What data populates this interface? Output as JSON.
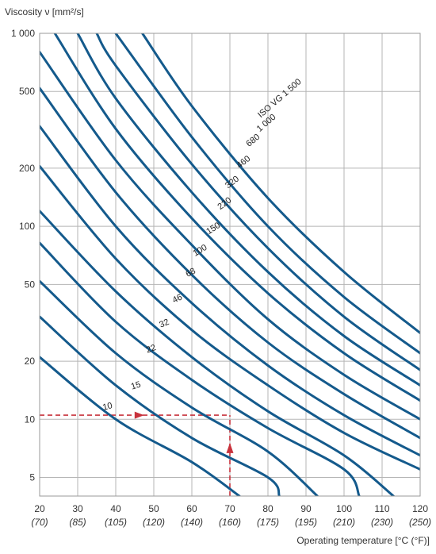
{
  "chart_data": {
    "type": "line",
    "y_scale": "log",
    "ylabel": "Viscosity ν [mm²/s]",
    "xlabel": "Operating temperature [°C (°F)]",
    "xlim": [
      20,
      120
    ],
    "ylim": [
      4,
      1000
    ],
    "grid": true,
    "x_ticks": [
      20,
      30,
      40,
      50,
      60,
      70,
      80,
      90,
      100,
      110,
      120
    ],
    "x_ticks_f": [
      "(70)",
      "(85)",
      "(105)",
      "(120)",
      "(140)",
      "(160)",
      "(175)",
      "(195)",
      "(210)",
      "(230)",
      "(250)"
    ],
    "y_ticks": [
      5,
      10,
      20,
      50,
      100,
      200,
      500,
      1000
    ],
    "y_tick_labels": [
      "5",
      "10",
      "20",
      "50",
      "100",
      "200",
      "500",
      "1 000"
    ],
    "line_color": "#145a8c",
    "guide_color": "#c8323c",
    "series": [
      {
        "name": "10",
        "points": [
          [
            20,
            21
          ],
          [
            40,
            10
          ],
          [
            60,
            6
          ],
          [
            72.5,
            4
          ]
        ]
      },
      {
        "name": "15",
        "points": [
          [
            20,
            34
          ],
          [
            40,
            15
          ],
          [
            60,
            8
          ],
          [
            80,
            5
          ],
          [
            83,
            4
          ]
        ]
      },
      {
        "name": "22",
        "points": [
          [
            20,
            52
          ],
          [
            40,
            22
          ],
          [
            60,
            11.5
          ],
          [
            80,
            6.8
          ],
          [
            93,
            4
          ]
        ]
      },
      {
        "name": "32",
        "points": [
          [
            20,
            82
          ],
          [
            40,
            32
          ],
          [
            60,
            16
          ],
          [
            80,
            9
          ],
          [
            100,
            5.5
          ],
          [
            104,
            4
          ]
        ]
      },
      {
        "name": "46",
        "points": [
          [
            20,
            120
          ],
          [
            40,
            46
          ],
          [
            60,
            21
          ],
          [
            80,
            11
          ],
          [
            100,
            6.5
          ],
          [
            113,
            4
          ]
        ]
      },
      {
        "name": "68",
        "points": [
          [
            20,
            205
          ],
          [
            40,
            68
          ],
          [
            60,
            29
          ],
          [
            80,
            15
          ],
          [
            100,
            8.5
          ],
          [
            120,
            5.5
          ]
        ]
      },
      {
        "name": "100",
        "points": [
          [
            20,
            330
          ],
          [
            40,
            100
          ],
          [
            60,
            40
          ],
          [
            80,
            19
          ],
          [
            100,
            10.5
          ],
          [
            120,
            6.5
          ]
        ]
      },
      {
        "name": "150",
        "points": [
          [
            20,
            520
          ],
          [
            40,
            150
          ],
          [
            60,
            56
          ],
          [
            80,
            25
          ],
          [
            100,
            13.5
          ],
          [
            120,
            8
          ]
        ]
      },
      {
        "name": "220",
        "points": [
          [
            20,
            800
          ],
          [
            40,
            220
          ],
          [
            60,
            80
          ],
          [
            80,
            33
          ],
          [
            100,
            17
          ],
          [
            120,
            10
          ]
        ]
      },
      {
        "name": "320",
        "points": [
          [
            24,
            1000
          ],
          [
            40,
            320
          ],
          [
            60,
            110
          ],
          [
            80,
            45
          ],
          [
            100,
            22
          ],
          [
            120,
            12.5
          ]
        ]
      },
      {
        "name": "460",
        "points": [
          [
            30,
            1000
          ],
          [
            40,
            460
          ],
          [
            60,
            150
          ],
          [
            80,
            58
          ],
          [
            100,
            27
          ],
          [
            120,
            15
          ]
        ]
      },
      {
        "name": "680",
        "points": [
          [
            35,
            1000
          ],
          [
            40,
            680
          ],
          [
            60,
            210
          ],
          [
            80,
            77
          ],
          [
            100,
            34
          ],
          [
            120,
            18
          ]
        ]
      },
      {
        "name": "1 000",
        "points": [
          [
            40,
            1000
          ],
          [
            60,
            290
          ],
          [
            80,
            100
          ],
          [
            100,
            43
          ],
          [
            120,
            22
          ]
        ]
      },
      {
        "name": "ISO VG 1 500",
        "points": [
          [
            47,
            1000
          ],
          [
            60,
            420
          ],
          [
            80,
            140
          ],
          [
            100,
            58
          ],
          [
            120,
            28
          ]
        ]
      }
    ],
    "annotations": [
      {
        "label": "10",
        "x": 38,
        "y": 11.3,
        "angle": -14
      },
      {
        "label": "15",
        "x": 45.5,
        "y": 14.5,
        "angle": -17
      },
      {
        "label": "22",
        "x": 49.5,
        "y": 22.5,
        "angle": -20
      },
      {
        "label": "32",
        "x": 53,
        "y": 30.5,
        "angle": -23
      },
      {
        "label": "46",
        "x": 56.5,
        "y": 41,
        "angle": -26
      },
      {
        "label": "68",
        "x": 60,
        "y": 56,
        "angle": -28
      },
      {
        "label": "100",
        "x": 62.5,
        "y": 73,
        "angle": -31
      },
      {
        "label": "150",
        "x": 66,
        "y": 95,
        "angle": -33
      },
      {
        "label": "220",
        "x": 69,
        "y": 128,
        "angle": -36
      },
      {
        "label": "320",
        "x": 71,
        "y": 165,
        "angle": -37
      },
      {
        "label": "460",
        "x": 74,
        "y": 210,
        "angle": -38
      },
      {
        "label": "680",
        "x": 76.5,
        "y": 272,
        "angle": -39
      },
      {
        "label": "1 000",
        "x": 80,
        "y": 335,
        "angle": -40
      },
      {
        "label": "ISO VG 1 500",
        "x": 83.5,
        "y": 450,
        "angle": -41
      }
    ],
    "guides": {
      "horizontal": {
        "y": 10.5,
        "x_from": 20,
        "x_to": 70,
        "arrow_at_x": 46
      },
      "vertical": {
        "x": 70,
        "y_from": 4,
        "y_to": 10.5,
        "arrow_at_y": 7
      }
    }
  }
}
